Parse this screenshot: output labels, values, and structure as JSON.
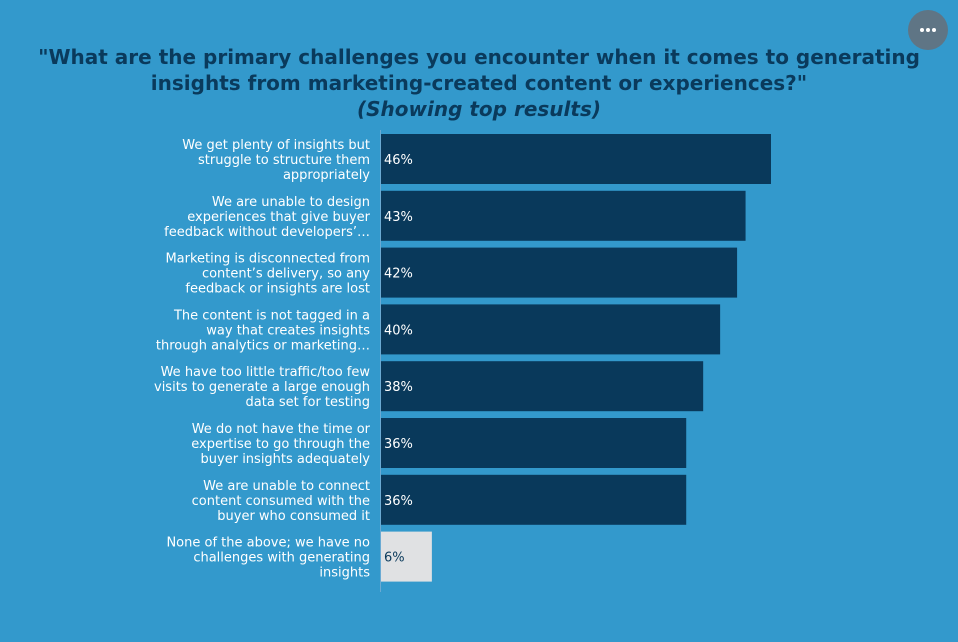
{
  "chart_data": {
    "type": "bar",
    "orientation": "horizontal",
    "title": "\"What are the primary challenges you encounter when it comes to generating insights from marketing-created content or experiences?\"",
    "subtitle": "(Showing top results)",
    "categories": [
      [
        "We get plenty of insights but",
        "struggle to structure them",
        "appropriately"
      ],
      [
        "We are unable to design",
        "experiences that give buyer",
        "feedback without developers’…"
      ],
      [
        "Marketing is disconnected from",
        "content’s delivery, so any",
        "feedback or insights are lost"
      ],
      [
        "The content is not tagged in a",
        "way that creates insights",
        "through analytics or marketing…"
      ],
      [
        "We have too little traffic/too few",
        "visits to generate a large enough",
        "data set for testing"
      ],
      [
        "We do not have the time or",
        "expertise to go through the",
        "buyer insights adequately"
      ],
      [
        "We are unable to connect",
        "content consumed with the",
        "buyer who consumed it"
      ],
      [
        "None of the above; we have no",
        "challenges with generating",
        "insights"
      ]
    ],
    "values": [
      46,
      43,
      42,
      40,
      38,
      36,
      36,
      6
    ],
    "value_labels": [
      "46%",
      "43%",
      "42%",
      "40%",
      "38%",
      "36%",
      "36%",
      "6%"
    ],
    "xlim": [
      0,
      60
    ],
    "grid": false,
    "colors": {
      "bar": "#09395b",
      "bar_highlight": "#e0e1e3",
      "label_on_dark": "#ffffff",
      "label_on_light": "#09395b",
      "axis_line": "#6aaad3"
    }
  },
  "menu": {
    "icon": "more-horizontal-icon"
  }
}
